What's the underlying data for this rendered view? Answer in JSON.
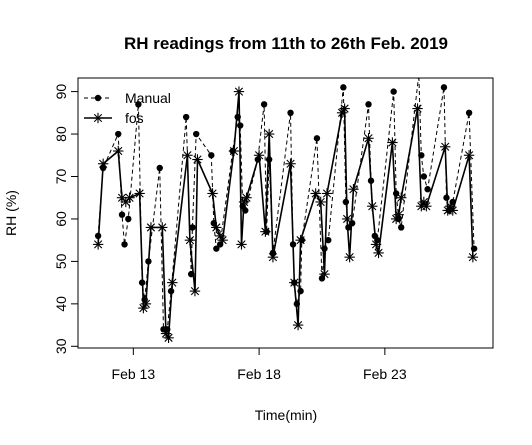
{
  "chart_data": {
    "type": "line",
    "title": "RH readings from 11th to 26th Feb. 2019",
    "xlabel": "Time(min)",
    "ylabel": "RH (%)",
    "x_ticks": [
      {
        "x": 13,
        "label": "Feb 13"
      },
      {
        "x": 18,
        "label": "Feb 18"
      },
      {
        "x": 23,
        "label": "Feb 23"
      }
    ],
    "y_ticks": [
      30,
      40,
      50,
      60,
      70,
      80,
      90
    ],
    "xlim": [
      10.8,
      27.3
    ],
    "ylim": [
      29.6,
      93.2
    ],
    "grid": false,
    "legend_position": "top-left",
    "series": [
      {
        "name": "Manual",
        "line_style": "dashed",
        "marker": "filled-circle",
        "color": "#000000",
        "points": [
          [
            11.6,
            56
          ],
          [
            11.8,
            72
          ],
          [
            12.4,
            80
          ],
          [
            12.55,
            61
          ],
          [
            12.65,
            54
          ],
          [
            12.8,
            60
          ],
          [
            13.2,
            87
          ],
          [
            13.35,
            45
          ],
          [
            13.45,
            41
          ],
          [
            13.6,
            50
          ],
          [
            14.05,
            72
          ],
          [
            14.2,
            34
          ],
          [
            14.35,
            34
          ],
          [
            14.5,
            43
          ],
          [
            15.1,
            84
          ],
          [
            15.3,
            47
          ],
          [
            15.35,
            58
          ],
          [
            15.5,
            80
          ],
          [
            16.1,
            75
          ],
          [
            16.2,
            59
          ],
          [
            16.3,
            53
          ],
          [
            16.45,
            54
          ],
          [
            16.95,
            76
          ],
          [
            17.15,
            84
          ],
          [
            17.25,
            82
          ],
          [
            17.35,
            63
          ],
          [
            17.45,
            62
          ],
          [
            17.95,
            74
          ],
          [
            18.2,
            87
          ],
          [
            18.3,
            57
          ],
          [
            18.4,
            74
          ],
          [
            18.55,
            52
          ],
          [
            19.25,
            85
          ],
          [
            19.35,
            54
          ],
          [
            19.4,
            45
          ],
          [
            19.5,
            40
          ],
          [
            19.65,
            43
          ],
          [
            19.7,
            55
          ],
          [
            20.3,
            79
          ],
          [
            20.5,
            46
          ],
          [
            20.6,
            53
          ],
          [
            20.75,
            55
          ],
          [
            21.35,
            91
          ],
          [
            21.45,
            64
          ],
          [
            21.55,
            58
          ],
          [
            21.7,
            59
          ],
          [
            22.35,
            87
          ],
          [
            22.45,
            69
          ],
          [
            22.6,
            56
          ],
          [
            22.7,
            55
          ],
          [
            23.35,
            90
          ],
          [
            23.45,
            66
          ],
          [
            23.55,
            60
          ],
          [
            23.65,
            58
          ],
          [
            24.35,
            94
          ],
          [
            24.45,
            75
          ],
          [
            24.55,
            70
          ],
          [
            24.7,
            67
          ],
          [
            25.35,
            91
          ],
          [
            25.45,
            65
          ],
          [
            25.55,
            62
          ],
          [
            25.7,
            64
          ],
          [
            26.35,
            85
          ],
          [
            26.55,
            53
          ]
        ]
      },
      {
        "name": "fos",
        "line_style": "solid",
        "marker": "asterisk",
        "color": "#000000",
        "points": [
          [
            11.6,
            54
          ],
          [
            11.8,
            73
          ],
          [
            12.4,
            76
          ],
          [
            12.55,
            65
          ],
          [
            12.7,
            64
          ],
          [
            12.85,
            65
          ],
          [
            13.25,
            66
          ],
          [
            13.4,
            39
          ],
          [
            13.5,
            40
          ],
          [
            13.7,
            58
          ],
          [
            14.15,
            58
          ],
          [
            14.3,
            33
          ],
          [
            14.4,
            32
          ],
          [
            14.55,
            45
          ],
          [
            15.15,
            75
          ],
          [
            15.25,
            55
          ],
          [
            15.45,
            43
          ],
          [
            15.55,
            74
          ],
          [
            16.15,
            66
          ],
          [
            16.3,
            58
          ],
          [
            16.45,
            56
          ],
          [
            16.55,
            55
          ],
          [
            17.0,
            76
          ],
          [
            17.2,
            90
          ],
          [
            17.3,
            54
          ],
          [
            17.4,
            64
          ],
          [
            17.5,
            65
          ],
          [
            18.0,
            75
          ],
          [
            18.25,
            57
          ],
          [
            18.4,
            80
          ],
          [
            18.55,
            51
          ],
          [
            19.25,
            73
          ],
          [
            19.4,
            45
          ],
          [
            19.55,
            35
          ],
          [
            19.65,
            55
          ],
          [
            20.25,
            66
          ],
          [
            20.45,
            64
          ],
          [
            20.6,
            47
          ],
          [
            20.7,
            66
          ],
          [
            21.3,
            85
          ],
          [
            21.4,
            86
          ],
          [
            21.5,
            60
          ],
          [
            21.6,
            51
          ],
          [
            21.75,
            67
          ],
          [
            22.35,
            79
          ],
          [
            22.5,
            63
          ],
          [
            22.65,
            54
          ],
          [
            22.75,
            52
          ],
          [
            23.3,
            78
          ],
          [
            23.45,
            60
          ],
          [
            23.55,
            61
          ],
          [
            23.65,
            65
          ],
          [
            24.3,
            86
          ],
          [
            24.45,
            63
          ],
          [
            24.55,
            64
          ],
          [
            24.65,
            63
          ],
          [
            25.4,
            77
          ],
          [
            25.5,
            62
          ],
          [
            25.6,
            63
          ],
          [
            25.7,
            62
          ],
          [
            26.35,
            75
          ],
          [
            26.5,
            51
          ]
        ]
      }
    ]
  }
}
